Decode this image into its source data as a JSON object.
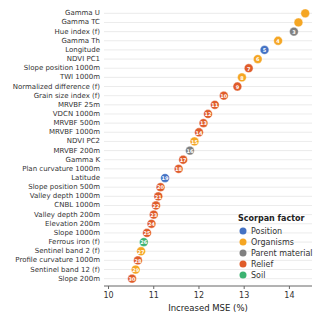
{
  "chart_data": {
    "type": "dot",
    "orientation": "horizontal",
    "xlabel": "Increased MSE (%)",
    "categories": [
      "Gamma U",
      "Gamma TC",
      "Hue index (f)",
      "Gamma Th",
      "Longitude",
      "NDVI PC1",
      "Slope position 1000m",
      "TWI 1000m",
      "Normalized difference (f)",
      "Grain size index (f)",
      "MRVBF 25m",
      "VDCN 1000m",
      "MRVBF 500m",
      "MRVBF 1000m",
      "NDVI PC2",
      "MRVBF 200m",
      "Gamma K",
      "Plan curvature 1000m",
      "Latitude",
      "Slope position 500m",
      "Valley depth 1000m",
      "CNBL 1000m",
      "Valley depth 200m",
      "Elevation 200m",
      "Slope 1000m",
      "Ferrous iron (f)",
      "Sentinel band 2 (f)",
      "Profile curvature 1000m",
      "Sentinel band 12 (f)",
      "Slope 200m"
    ],
    "values": [
      14.35,
      14.2,
      14.1,
      13.75,
      13.45,
      13.3,
      13.1,
      12.95,
      12.85,
      12.55,
      12.35,
      12.2,
      12.1,
      12.0,
      11.9,
      11.8,
      11.65,
      11.55,
      11.25,
      11.15,
      11.1,
      11.05,
      11.0,
      10.95,
      10.85,
      10.78,
      10.72,
      10.65,
      10.6,
      10.52
    ],
    "ranks": [
      null,
      null,
      3,
      4,
      5,
      6,
      7,
      8,
      9,
      10,
      11,
      12,
      13,
      14,
      15,
      16,
      17,
      18,
      19,
      20,
      21,
      22,
      23,
      24,
      25,
      26,
      27,
      28,
      29,
      30
    ],
    "colors": [
      "#F5A623",
      "#F5A623",
      "#808080",
      "#F5A623",
      "#4472C4",
      "#F5A623",
      "#E05C2A",
      "#F5A623",
      "#E05C2A",
      "#E05C2A",
      "#E05C2A",
      "#E05C2A",
      "#E05C2A",
      "#E05C2A",
      "#F5A623",
      "#808080",
      "#E05C2A",
      "#E05C2A",
      "#4472C4",
      "#E05C2A",
      "#E05C2A",
      "#E05C2A",
      "#E05C2A",
      "#E05C2A",
      "#E05C2A",
      "#3CB371",
      "#F5A623",
      "#E05C2A",
      "#F5A623",
      "#E05C2A"
    ],
    "xlim": [
      9.9,
      14.5
    ],
    "xticks": [
      10,
      11,
      12,
      13,
      14
    ],
    "grid": true,
    "legend": "lower right",
    "legend_title": "Scorpan factor",
    "legend_items": [
      {
        "name": "Position",
        "color": "#4472C4"
      },
      {
        "name": "Organisms",
        "color": "#F5A623"
      },
      {
        "name": "Parent material",
        "color": "#808080"
      },
      {
        "name": "Relief",
        "color": "#E05C2A"
      },
      {
        "name": "Soil",
        "color": "#3CB371"
      }
    ]
  }
}
